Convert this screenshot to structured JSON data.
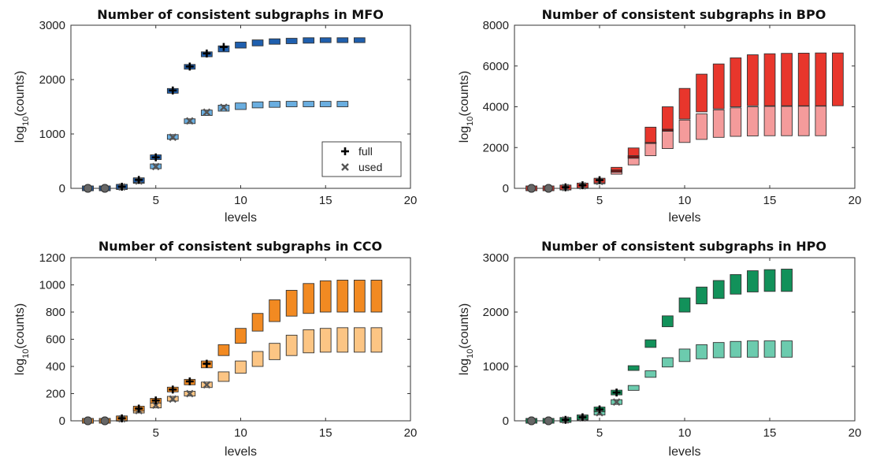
{
  "chart_data": [
    {
      "type": "box",
      "title": "Number of consistent subgraphs in MFO",
      "xlabel": "levels",
      "ylabel": "log10(counts)",
      "xlim": [
        0,
        20
      ],
      "ylim": [
        0,
        3000
      ],
      "xticks": [
        "5",
        "10",
        "15",
        "20"
      ],
      "yticks": [
        "0",
        "1000",
        "2000",
        "3000"
      ],
      "legend": {
        "position": "inside-center-right",
        "entries": [
          "full",
          "used"
        ]
      },
      "colors": {
        "full": "#1f5fae",
        "used": "#6aaee0",
        "overlap": "#12407a"
      },
      "series": [
        {
          "name": "full",
          "points": [
            {
              "x": 1,
              "low": 0,
              "high": 0,
              "median": 0
            },
            {
              "x": 2,
              "low": 0,
              "high": 0,
              "median": 0
            },
            {
              "x": 3,
              "low": 20,
              "high": 40,
              "median": 30
            },
            {
              "x": 4,
              "low": 130,
              "high": 170,
              "median": 155
            },
            {
              "x": 5,
              "low": 555,
              "high": 590,
              "median": 570
            },
            {
              "x": 6,
              "low": 1770,
              "high": 1815,
              "median": 1800
            },
            {
              "x": 7,
              "low": 2210,
              "high": 2260,
              "median": 2240
            },
            {
              "x": 8,
              "low": 2420,
              "high": 2510,
              "median": 2480
            },
            {
              "x": 9,
              "low": 2510,
              "high": 2620,
              "median": 2600
            },
            {
              "x": 10,
              "low": 2580,
              "high": 2690
            },
            {
              "x": 11,
              "low": 2620,
              "high": 2730
            },
            {
              "x": 12,
              "low": 2650,
              "high": 2750
            },
            {
              "x": 13,
              "low": 2660,
              "high": 2760
            },
            {
              "x": 14,
              "low": 2670,
              "high": 2770
            },
            {
              "x": 15,
              "low": 2680,
              "high": 2770
            },
            {
              "x": 16,
              "low": 2680,
              "high": 2770
            },
            {
              "x": 17,
              "low": 2680,
              "high": 2770
            }
          ]
        },
        {
          "name": "used",
          "points": [
            {
              "x": 1,
              "low": 0,
              "high": 0,
              "median": 0
            },
            {
              "x": 2,
              "low": 0,
              "high": 0,
              "median": 0
            },
            {
              "x": 3,
              "low": 15,
              "high": 30,
              "median": 25
            },
            {
              "x": 4,
              "low": 120,
              "high": 150,
              "median": 135
            },
            {
              "x": 5,
              "low": 385,
              "high": 425,
              "median": 400
            },
            {
              "x": 6,
              "low": 920,
              "high": 970,
              "median": 940
            },
            {
              "x": 7,
              "low": 1200,
              "high": 1270,
              "median": 1240
            },
            {
              "x": 8,
              "low": 1340,
              "high": 1440,
              "median": 1400
            },
            {
              "x": 9,
              "low": 1420,
              "high": 1530,
              "median": 1490
            },
            {
              "x": 10,
              "low": 1450,
              "high": 1570
            },
            {
              "x": 11,
              "low": 1480,
              "high": 1590
            },
            {
              "x": 12,
              "low": 1490,
              "high": 1600
            },
            {
              "x": 13,
              "low": 1500,
              "high": 1600
            },
            {
              "x": 14,
              "low": 1500,
              "high": 1600
            },
            {
              "x": 15,
              "low": 1500,
              "high": 1600
            },
            {
              "x": 16,
              "low": 1500,
              "high": 1600
            }
          ]
        }
      ]
    },
    {
      "type": "box",
      "title": "Number of consistent subgraphs in BPO",
      "xlabel": "levels",
      "ylabel": "log10(counts)",
      "xlim": [
        0,
        20
      ],
      "ylim": [
        0,
        8000
      ],
      "xticks": [
        "5",
        "10",
        "15",
        "20"
      ],
      "yticks": [
        "0",
        "2000",
        "4000",
        "6000",
        "8000"
      ],
      "colors": {
        "full": "#e8362c",
        "used": "#f49b9b",
        "overlap": "#7a1212"
      },
      "series": [
        {
          "name": "full",
          "points": [
            {
              "x": 1,
              "low": 0,
              "high": 0,
              "median": 0
            },
            {
              "x": 2,
              "low": 0,
              "high": 0,
              "median": 0
            },
            {
              "x": 3,
              "low": 30,
              "high": 60,
              "median": 50
            },
            {
              "x": 4,
              "low": 100,
              "high": 180,
              "median": 150
            },
            {
              "x": 5,
              "low": 320,
              "high": 440,
              "median": 400
            },
            {
              "x": 6,
              "low": 800,
              "high": 1030
            },
            {
              "x": 7,
              "low": 1480,
              "high": 1980
            },
            {
              "x": 8,
              "low": 2200,
              "high": 3000
            },
            {
              "x": 9,
              "low": 2800,
              "high": 4000
            },
            {
              "x": 10,
              "low": 3400,
              "high": 4900
            },
            {
              "x": 11,
              "low": 3750,
              "high": 5600
            },
            {
              "x": 12,
              "low": 3900,
              "high": 6100
            },
            {
              "x": 13,
              "low": 4000,
              "high": 6400
            },
            {
              "x": 14,
              "low": 4050,
              "high": 6550
            },
            {
              "x": 15,
              "low": 4050,
              "high": 6600
            },
            {
              "x": 16,
              "low": 4050,
              "high": 6620
            },
            {
              "x": 17,
              "low": 4050,
              "high": 6630
            },
            {
              "x": 18,
              "low": 4050,
              "high": 6640
            },
            {
              "x": 19,
              "low": 4050,
              "high": 6640
            }
          ]
        },
        {
          "name": "used",
          "points": [
            {
              "x": 1,
              "low": 0,
              "high": 0,
              "median": 0
            },
            {
              "x": 2,
              "low": 0,
              "high": 0,
              "median": 0
            },
            {
              "x": 3,
              "low": 20,
              "high": 50,
              "median": 40
            },
            {
              "x": 4,
              "low": 80,
              "high": 140,
              "median": 120
            },
            {
              "x": 5,
              "low": 280,
              "high": 400,
              "median": 340
            },
            {
              "x": 6,
              "low": 720,
              "high": 900
            },
            {
              "x": 7,
              "low": 1150,
              "high": 1600
            },
            {
              "x": 8,
              "low": 1600,
              "high": 2250
            },
            {
              "x": 9,
              "low": 1950,
              "high": 2900
            },
            {
              "x": 10,
              "low": 2250,
              "high": 3350
            },
            {
              "x": 11,
              "low": 2400,
              "high": 3650
            },
            {
              "x": 12,
              "low": 2500,
              "high": 3850
            },
            {
              "x": 13,
              "low": 2550,
              "high": 3950
            },
            {
              "x": 14,
              "low": 2570,
              "high": 4000
            },
            {
              "x": 15,
              "low": 2580,
              "high": 4020
            },
            {
              "x": 16,
              "low": 2580,
              "high": 4020
            },
            {
              "x": 17,
              "low": 2580,
              "high": 4030
            },
            {
              "x": 18,
              "low": 2580,
              "high": 4030
            }
          ]
        }
      ]
    },
    {
      "type": "box",
      "title": "Number of consistent subgraphs in CCO",
      "xlabel": "levels",
      "ylabel": "log10(counts)",
      "xlim": [
        0,
        20
      ],
      "ylim": [
        0,
        1200
      ],
      "xticks": [
        "5",
        "10",
        "15",
        "20"
      ],
      "yticks": [
        "0",
        "200",
        "400",
        "600",
        "800",
        "1000",
        "1200"
      ],
      "colors": {
        "full": "#f28a22",
        "used": "#fcc584",
        "overlap": "#b06010"
      },
      "series": [
        {
          "name": "full",
          "points": [
            {
              "x": 1,
              "low": 0,
              "high": 0,
              "median": 0
            },
            {
              "x": 2,
              "low": 0,
              "high": 0,
              "median": 0
            },
            {
              "x": 3,
              "low": 12,
              "high": 25,
              "median": 18
            },
            {
              "x": 4,
              "low": 80,
              "high": 100,
              "median": 90
            },
            {
              "x": 5,
              "low": 130,
              "high": 165,
              "median": 150
            },
            {
              "x": 6,
              "low": 215,
              "high": 245,
              "median": 230
            },
            {
              "x": 7,
              "low": 265,
              "high": 305,
              "median": 290
            },
            {
              "x": 8,
              "low": 390,
              "high": 440,
              "median": 420
            },
            {
              "x": 9,
              "low": 480,
              "high": 560
            },
            {
              "x": 10,
              "low": 570,
              "high": 680
            },
            {
              "x": 11,
              "low": 660,
              "high": 790
            },
            {
              "x": 12,
              "low": 730,
              "high": 890
            },
            {
              "x": 13,
              "low": 770,
              "high": 960
            },
            {
              "x": 14,
              "low": 790,
              "high": 1010
            },
            {
              "x": 15,
              "low": 800,
              "high": 1030
            },
            {
              "x": 16,
              "low": 800,
              "high": 1035
            },
            {
              "x": 17,
              "low": 800,
              "high": 1035
            },
            {
              "x": 18,
              "low": 800,
              "high": 1035
            }
          ]
        },
        {
          "name": "used",
          "points": [
            {
              "x": 1,
              "low": 0,
              "high": 0,
              "median": 0
            },
            {
              "x": 2,
              "low": 0,
              "high": 0,
              "median": 0
            },
            {
              "x": 3,
              "low": 10,
              "high": 20,
              "median": 15
            },
            {
              "x": 4,
              "low": 65,
              "high": 85,
              "median": 75
            },
            {
              "x": 5,
              "low": 100,
              "high": 125,
              "median": 115
            },
            {
              "x": 6,
              "low": 150,
              "high": 175,
              "median": 160
            },
            {
              "x": 7,
              "low": 185,
              "high": 215,
              "median": 200
            },
            {
              "x": 8,
              "low": 245,
              "high": 285,
              "median": 265
            },
            {
              "x": 9,
              "low": 290,
              "high": 360
            },
            {
              "x": 10,
              "low": 350,
              "high": 440
            },
            {
              "x": 11,
              "low": 400,
              "high": 510
            },
            {
              "x": 12,
              "low": 450,
              "high": 570
            },
            {
              "x": 13,
              "low": 480,
              "high": 630
            },
            {
              "x": 14,
              "low": 500,
              "high": 670
            },
            {
              "x": 15,
              "low": 505,
              "high": 680
            },
            {
              "x": 16,
              "low": 505,
              "high": 685
            },
            {
              "x": 17,
              "low": 505,
              "high": 685
            },
            {
              "x": 18,
              "low": 505,
              "high": 685
            }
          ]
        }
      ]
    },
    {
      "type": "box",
      "title": "Number of consistent subgraphs in HPO",
      "xlabel": "levels",
      "ylabel": "log10(counts)",
      "xlim": [
        0,
        20
      ],
      "ylim": [
        0,
        3000
      ],
      "xticks": [
        "5",
        "10",
        "15",
        "20"
      ],
      "yticks": [
        "0",
        "1000",
        "2000",
        "3000"
      ],
      "colors": {
        "full": "#12915a",
        "used": "#6ccbae",
        "overlap": "#0a5c38"
      },
      "series": [
        {
          "name": "full",
          "points": [
            {
              "x": 1,
              "low": 0,
              "high": 0,
              "median": 0
            },
            {
              "x": 2,
              "low": 0,
              "high": 0,
              "median": 0
            },
            {
              "x": 3,
              "low": 10,
              "high": 25,
              "median": 18
            },
            {
              "x": 4,
              "low": 50,
              "high": 80,
              "median": 65
            },
            {
              "x": 5,
              "low": 180,
              "high": 240,
              "median": 210
            },
            {
              "x": 6,
              "low": 490,
              "high": 550,
              "median": 520
            },
            {
              "x": 7,
              "low": 930,
              "high": 1010
            },
            {
              "x": 8,
              "low": 1350,
              "high": 1490
            },
            {
              "x": 9,
              "low": 1730,
              "high": 1930
            },
            {
              "x": 10,
              "low": 2000,
              "high": 2260
            },
            {
              "x": 11,
              "low": 2150,
              "high": 2460
            },
            {
              "x": 12,
              "low": 2250,
              "high": 2580
            },
            {
              "x": 13,
              "low": 2330,
              "high": 2690
            },
            {
              "x": 14,
              "low": 2370,
              "high": 2760
            },
            {
              "x": 15,
              "low": 2380,
              "high": 2780
            },
            {
              "x": 16,
              "low": 2380,
              "high": 2790
            }
          ]
        },
        {
          "name": "used",
          "points": [
            {
              "x": 1,
              "low": 0,
              "high": 0,
              "median": 0
            },
            {
              "x": 2,
              "low": 0,
              "high": 0,
              "median": 0
            },
            {
              "x": 3,
              "low": 8,
              "high": 20,
              "median": 14
            },
            {
              "x": 4,
              "low": 40,
              "high": 65,
              "median": 52
            },
            {
              "x": 5,
              "low": 130,
              "high": 170,
              "median": 150
            },
            {
              "x": 6,
              "low": 320,
              "high": 370,
              "median": 345
            },
            {
              "x": 7,
              "low": 560,
              "high": 650
            },
            {
              "x": 8,
              "low": 800,
              "high": 920
            },
            {
              "x": 9,
              "low": 990,
              "high": 1160
            },
            {
              "x": 10,
              "low": 1090,
              "high": 1320
            },
            {
              "x": 11,
              "low": 1140,
              "high": 1400
            },
            {
              "x": 12,
              "low": 1160,
              "high": 1440
            },
            {
              "x": 13,
              "low": 1170,
              "high": 1460
            },
            {
              "x": 14,
              "low": 1170,
              "high": 1470
            },
            {
              "x": 15,
              "low": 1170,
              "high": 1470
            },
            {
              "x": 16,
              "low": 1170,
              "high": 1470
            }
          ]
        }
      ]
    }
  ]
}
